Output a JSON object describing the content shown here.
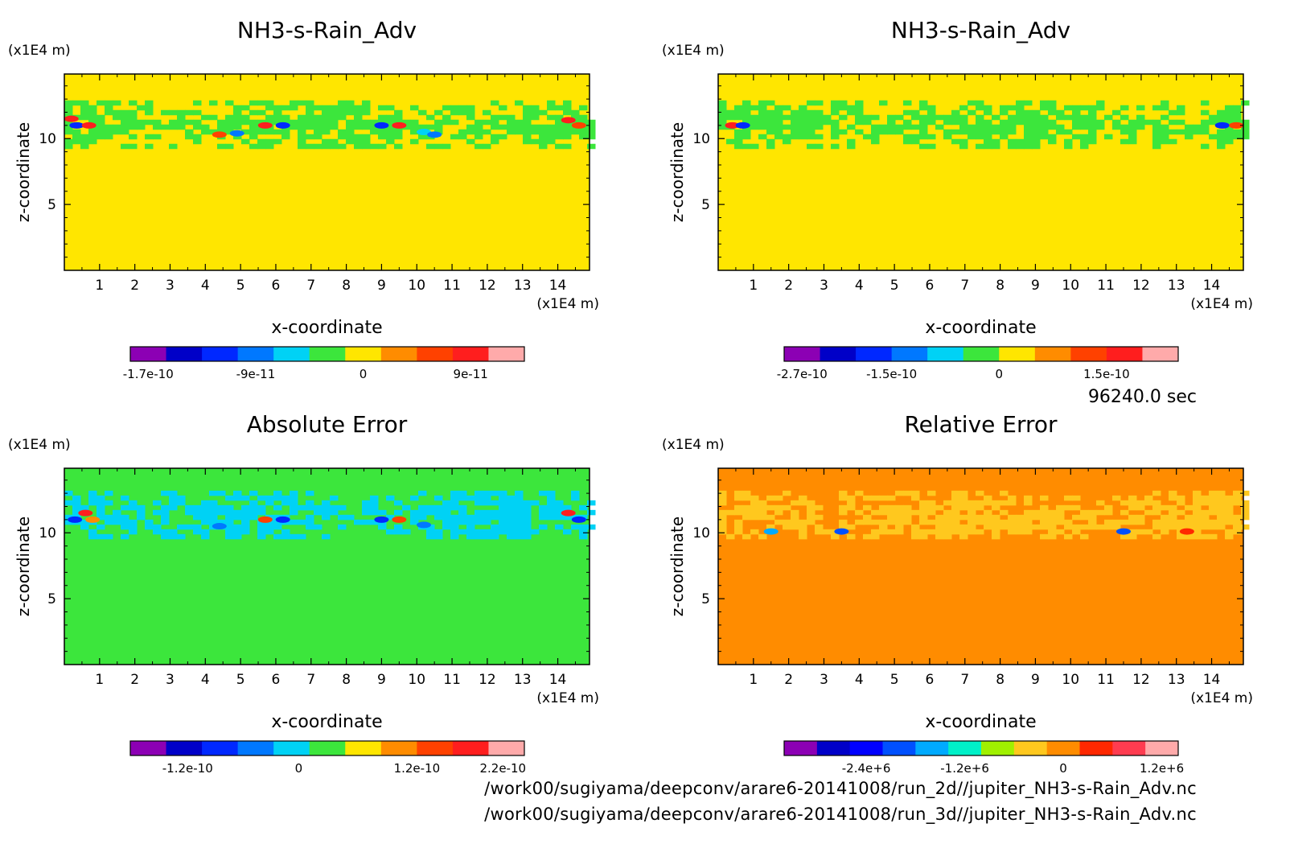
{
  "time_label": "96240.0 sec",
  "footer": [
    "/work00/sugiyama/deepconv/arare6-20141008/run_2d//jupiter_NH3-s-Rain_Adv.nc",
    "/work00/sugiyama/deepconv/arare6-20141008/run_3d//jupiter_NH3-s-Rain_Adv.nc"
  ],
  "chart_data": [
    {
      "type": "heatmap",
      "title": "NH3-s-Rain_Adv",
      "xlabel": "x-coordinate",
      "ylabel": "z-coordinate",
      "x_unit": "(x1E4 m)",
      "y_unit": "(x1E4 m)",
      "xlim": [
        0,
        14.9
      ],
      "ylim": [
        0,
        14.9
      ],
      "xticks": [
        "1",
        "2",
        "3",
        "4",
        "5",
        "6",
        "7",
        "8",
        "9",
        "10",
        "11",
        "12",
        "13",
        "14"
      ],
      "yticks": [
        "5",
        "10"
      ],
      "background_color": "#ffe600",
      "band_color": "#3ce63c",
      "band_z_range": [
        9.6,
        12.9
      ],
      "colorbar": {
        "colors": [
          "#8c00b4",
          "#0000c8",
          "#0028ff",
          "#0078ff",
          "#00d2f5",
          "#3ce63c",
          "#ffe600",
          "#ff8c00",
          "#ff4100",
          "#ff1e1e",
          "#ffaaaa"
        ],
        "tick_labels": [
          "-1.7e-10",
          "-9e-11",
          "0",
          "9e-11"
        ],
        "tick_positions": [
          0,
          3,
          6,
          9
        ]
      },
      "blobs": [
        {
          "x": 0.2,
          "z": 11.5,
          "c": "#ff1e1e"
        },
        {
          "x": 0.35,
          "z": 11.0,
          "c": "#0028ff"
        },
        {
          "x": 0.7,
          "z": 11.0,
          "c": "#ff1e1e"
        },
        {
          "x": 4.4,
          "z": 10.3,
          "c": "#ff4100"
        },
        {
          "x": 4.9,
          "z": 10.4,
          "c": "#0078ff"
        },
        {
          "x": 5.7,
          "z": 11.0,
          "c": "#ff1e1e"
        },
        {
          "x": 6.2,
          "z": 11.0,
          "c": "#0028ff"
        },
        {
          "x": 9.0,
          "z": 11.0,
          "c": "#0028ff"
        },
        {
          "x": 9.5,
          "z": 11.0,
          "c": "#ff1e1e"
        },
        {
          "x": 10.2,
          "z": 10.5,
          "c": "#00d2f5"
        },
        {
          "x": 10.5,
          "z": 10.3,
          "c": "#0078ff"
        },
        {
          "x": 14.3,
          "z": 11.4,
          "c": "#ff1e1e"
        },
        {
          "x": 14.6,
          "z": 11.0,
          "c": "#ff4100"
        }
      ]
    },
    {
      "type": "heatmap",
      "title": "NH3-s-Rain_Adv",
      "xlabel": "x-coordinate",
      "ylabel": "z-coordinate",
      "x_unit": "(x1E4 m)",
      "y_unit": "(x1E4 m)",
      "xlim": [
        0,
        14.9
      ],
      "ylim": [
        0,
        14.9
      ],
      "xticks": [
        "1",
        "2",
        "3",
        "4",
        "5",
        "6",
        "7",
        "8",
        "9",
        "10",
        "11",
        "12",
        "13",
        "14"
      ],
      "yticks": [
        "5",
        "10"
      ],
      "background_color": "#ffe600",
      "band_color": "#3ce63c",
      "band_z_range": [
        9.6,
        12.9
      ],
      "colorbar": {
        "colors": [
          "#8c00b4",
          "#0000c8",
          "#0028ff",
          "#0078ff",
          "#00d2f5",
          "#3ce63c",
          "#ffe600",
          "#ff8c00",
          "#ff4100",
          "#ff1e1e",
          "#ffaaaa"
        ],
        "tick_labels": [
          "-2.7e-10",
          "-1.5e-10",
          "0",
          "1.5e-10"
        ],
        "tick_positions": [
          0,
          2.5,
          5.5,
          8.5
        ]
      },
      "blobs": [
        {
          "x": 0.4,
          "z": 11.0,
          "c": "#ff1e1e"
        },
        {
          "x": 0.7,
          "z": 11.0,
          "c": "#0028ff"
        },
        {
          "x": 14.3,
          "z": 11.0,
          "c": "#0028ff"
        },
        {
          "x": 14.7,
          "z": 11.0,
          "c": "#ff4100"
        }
      ]
    },
    {
      "type": "heatmap",
      "title": "Absolute Error",
      "xlabel": "x-coordinate",
      "ylabel": "z-coordinate",
      "x_unit": "(x1E4 m)",
      "y_unit": "(x1E4 m)",
      "xlim": [
        0,
        14.9
      ],
      "ylim": [
        0,
        14.9
      ],
      "xticks": [
        "1",
        "2",
        "3",
        "4",
        "5",
        "6",
        "7",
        "8",
        "9",
        "10",
        "11",
        "12",
        "13",
        "14"
      ],
      "yticks": [
        "5",
        "10"
      ],
      "background_color": "#3ce63c",
      "band_color": "#00d2f5",
      "band_z_range": [
        9.8,
        13.2
      ],
      "colorbar": {
        "colors": [
          "#8c00b4",
          "#0000c8",
          "#0028ff",
          "#0078ff",
          "#00d2f5",
          "#3ce63c",
          "#ffe600",
          "#ff8c00",
          "#ff4100",
          "#ff1e1e",
          "#ffaaaa"
        ],
        "tick_labels": [
          "-1.2e-10",
          "0",
          "1.2e-10",
          "2.2e-10"
        ],
        "tick_positions": [
          1.1,
          4.2,
          7.5,
          9.9
        ]
      },
      "blobs": [
        {
          "x": 0.3,
          "z": 11.0,
          "c": "#0028ff"
        },
        {
          "x": 0.6,
          "z": 11.5,
          "c": "#ff1e1e"
        },
        {
          "x": 0.8,
          "z": 11.0,
          "c": "#ff8c00"
        },
        {
          "x": 4.4,
          "z": 10.5,
          "c": "#0078ff"
        },
        {
          "x": 5.7,
          "z": 11.0,
          "c": "#ff4100"
        },
        {
          "x": 6.2,
          "z": 11.0,
          "c": "#0028ff"
        },
        {
          "x": 9.0,
          "z": 11.0,
          "c": "#0028ff"
        },
        {
          "x": 9.5,
          "z": 11.0,
          "c": "#ff4100"
        },
        {
          "x": 10.2,
          "z": 10.6,
          "c": "#0078ff"
        },
        {
          "x": 14.3,
          "z": 11.5,
          "c": "#ff1e1e"
        },
        {
          "x": 14.6,
          "z": 11.0,
          "c": "#0028ff"
        }
      ]
    },
    {
      "type": "heatmap",
      "title": "Relative Error",
      "xlabel": "x-coordinate",
      "ylabel": "z-coordinate",
      "x_unit": "(x1E4 m)",
      "y_unit": "(x1E4 m)",
      "xlim": [
        0,
        14.9
      ],
      "ylim": [
        0,
        14.9
      ],
      "xticks": [
        "1",
        "2",
        "3",
        "4",
        "5",
        "6",
        "7",
        "8",
        "9",
        "10",
        "11",
        "12",
        "13",
        "14"
      ],
      "yticks": [
        "5",
        "10"
      ],
      "background_color": "#ff8c00",
      "band_color": "#ffc81e",
      "band_z_range": [
        9.7,
        13.2
      ],
      "colorbar": {
        "colors": [
          "#8c00b4",
          "#0000c8",
          "#0000ff",
          "#0050ff",
          "#00aaff",
          "#00f0c8",
          "#a0f000",
          "#ffc81e",
          "#ff8c00",
          "#ff2800",
          "#ff3c50",
          "#ffaaaa"
        ],
        "tick_labels": [
          "-2.4e+6",
          "-1.2e+6",
          "0",
          "1.2e+6"
        ],
        "tick_positions": [
          2.0,
          5.0,
          8.0,
          11.0
        ]
      },
      "blobs": [
        {
          "x": 1.5,
          "z": 10.1,
          "c": "#00aaff"
        },
        {
          "x": 3.5,
          "z": 10.1,
          "c": "#0050ff"
        },
        {
          "x": 11.5,
          "z": 10.1,
          "c": "#0050ff"
        },
        {
          "x": 13.3,
          "z": 10.1,
          "c": "#ff2800"
        }
      ]
    }
  ]
}
